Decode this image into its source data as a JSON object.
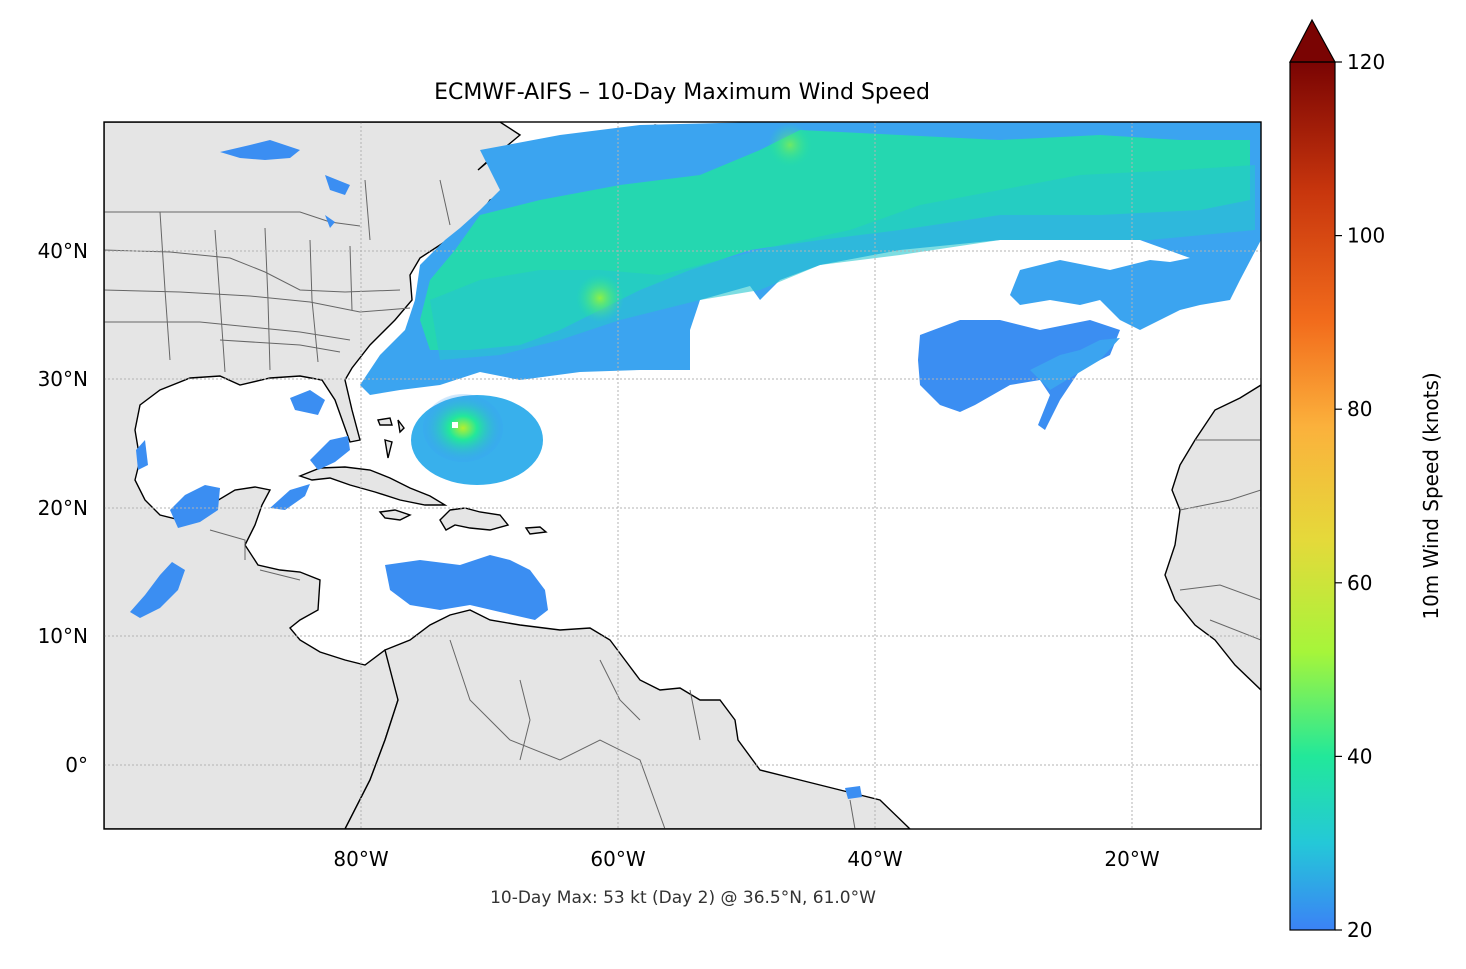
{
  "title": "ECMWF-AIFS – 10-Day Maximum Wind Speed",
  "footer_note": "10-Day Max: 53 kt (Day 2) @ 36.5°N, 61.0°W",
  "map": {
    "lon_range": [
      -100,
      -10
    ],
    "lat_range": [
      -5,
      50
    ],
    "lon_ticks": [
      {
        "value": -80,
        "label": "80°W"
      },
      {
        "value": -60,
        "label": "60°W"
      },
      {
        "value": -40,
        "label": "40°W"
      },
      {
        "value": -20,
        "label": "20°W"
      }
    ],
    "lat_ticks": [
      {
        "value": 40,
        "label": "40°N"
      },
      {
        "value": 30,
        "label": "30°N"
      },
      {
        "value": 20,
        "label": "20°N"
      },
      {
        "value": 10,
        "label": "10°N"
      },
      {
        "value": 0,
        "label": "0°"
      }
    ],
    "gridlines": true,
    "land_color": "#e5e5e5",
    "coast_color": "#000000",
    "border_color": "#666666"
  },
  "colorbar": {
    "label": "10m Wind Speed (knots)",
    "min": 20,
    "max": 120,
    "extend": "max",
    "ticks": [
      {
        "value": 20,
        "label": "20"
      },
      {
        "value": 40,
        "label": "40"
      },
      {
        "value": 60,
        "label": "60"
      },
      {
        "value": 80,
        "label": "80"
      },
      {
        "value": 100,
        "label": "100"
      },
      {
        "value": 120,
        "label": "120"
      }
    ],
    "colormap": [
      "#3b82f6",
      "#24c8d8",
      "#22e89a",
      "#a6f53a",
      "#e5d93a",
      "#fbb13c",
      "#f26c1c",
      "#c8360d",
      "#7a0403"
    ]
  },
  "max_point": {
    "wind_kt": 53,
    "day": 2,
    "lat": 36.5,
    "lon": -61.0
  }
}
